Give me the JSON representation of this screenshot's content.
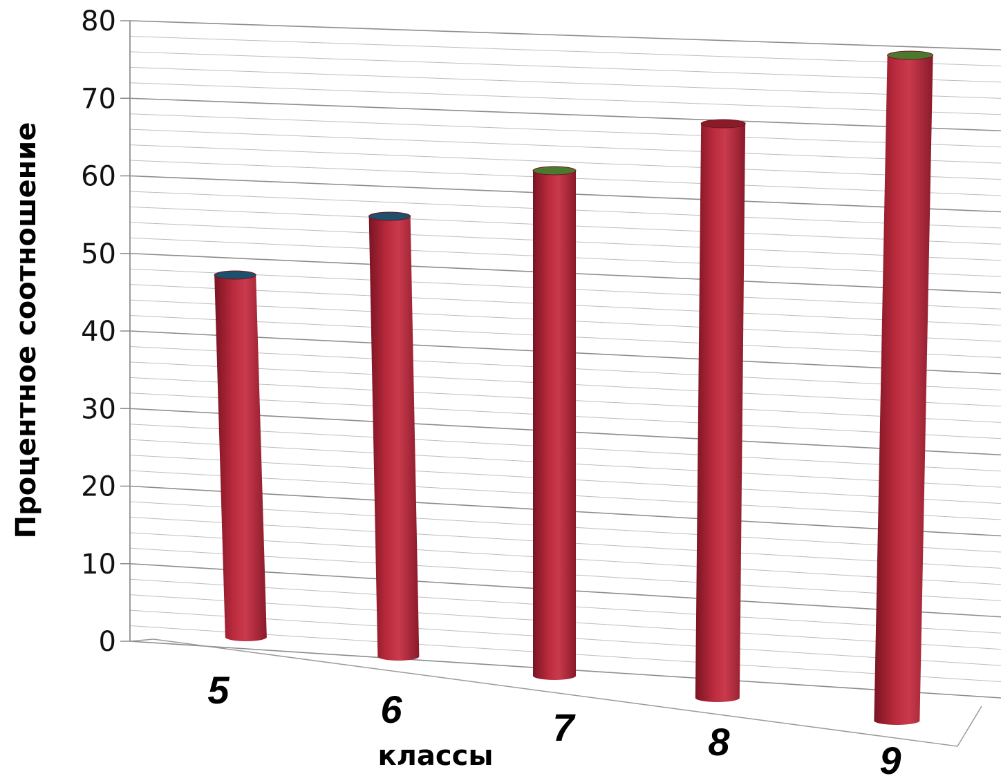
{
  "chart_data": {
    "type": "bar",
    "categories": [
      "5",
      "6",
      "7",
      "8",
      "9"
    ],
    "values": [
      47.5,
      55.0,
      61.0,
      67.5,
      76.0
    ],
    "xlabel": "классы",
    "ylabel": "Процентное  соотношение",
    "ylim": [
      0,
      80
    ],
    "yticks": [
      0,
      10,
      20,
      30,
      40,
      50,
      60,
      70,
      80
    ],
    "grid": true,
    "bar_color": "#b0283a",
    "cap_colors": [
      "#1e4f6b",
      "#1e4f6b",
      "#4a7a2e",
      "#8a1c2a",
      "#4a7a2e"
    ]
  }
}
